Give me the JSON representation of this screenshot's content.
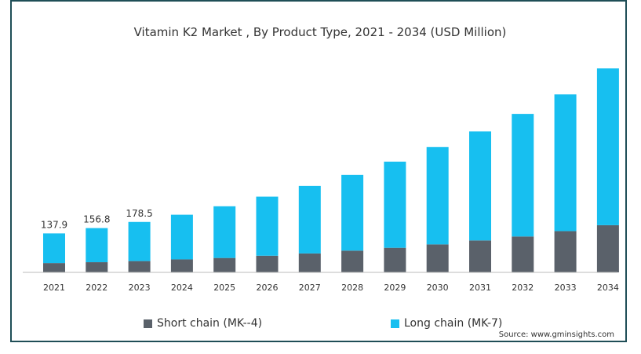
{
  "chart_data": {
    "type": "bar",
    "stacked": true,
    "title": "Vitamin K2 Market , By Product Type, 2021 - 2034 (USD Million)",
    "categories": [
      "2021",
      "2022",
      "2023",
      "2024",
      "2025",
      "2026",
      "2027",
      "2028",
      "2029",
      "2030",
      "2031",
      "2032",
      "2033",
      "2034"
    ],
    "series": [
      {
        "name": "Short chain (MK--4)",
        "color": "#5a616a",
        "values": [
          33,
          36,
          40,
          46,
          51,
          59,
          67,
          77,
          87,
          99,
          113,
          127,
          146,
          167
        ]
      },
      {
        "name": "Long chain (MK-7)",
        "color": "#17bff0",
        "values": [
          104.9,
          120.8,
          138.5,
          158,
          183,
          209,
          239,
          268,
          305,
          345,
          386,
          434,
          484,
          555
        ]
      }
    ],
    "data_labels": [
      "137.9",
      "156.8",
      "178.5",
      "",
      "",
      "",
      "",
      "",
      "",
      "",
      "",
      "",
      "",
      ""
    ],
    "ylim": [
      0,
      725
    ],
    "grid": false,
    "legend_position": "bottom"
  },
  "source": "Source: www.gminsights.com"
}
